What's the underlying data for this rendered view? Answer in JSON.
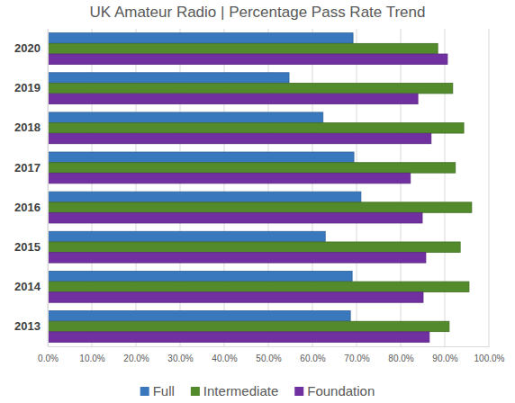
{
  "chart_data": {
    "type": "bar",
    "title": "UK Amateur Radio | Percentage Pass Rate Trend",
    "orientation": "horizontal",
    "categories": [
      "2013",
      "2014",
      "2015",
      "2016",
      "2017",
      "2018",
      "2019",
      "2020"
    ],
    "series": [
      {
        "name": "Full",
        "color": "#3a78bd",
        "values": [
          68.6,
          69.0,
          62.9,
          71.0,
          69.4,
          62.4,
          54.7,
          69.2
        ]
      },
      {
        "name": "Intermediate",
        "color": "#528a2c",
        "values": [
          91.0,
          95.5,
          93.5,
          96.1,
          92.4,
          94.3,
          91.8,
          88.4
        ]
      },
      {
        "name": "Foundation",
        "color": "#7030a0",
        "values": [
          86.5,
          85.1,
          85.7,
          84.9,
          82.2,
          86.9,
          83.9,
          90.6
        ]
      }
    ],
    "xlim": [
      0,
      100
    ],
    "xticks": [
      {
        "value": 0,
        "label": "0.0%"
      },
      {
        "value": 10,
        "label": "10.0%"
      },
      {
        "value": 20,
        "label": "20.0%"
      },
      {
        "value": 30,
        "label": "30.0%"
      },
      {
        "value": 40,
        "label": "40.0%"
      },
      {
        "value": 50,
        "label": "50.0%"
      },
      {
        "value": 60,
        "label": "60.0%"
      },
      {
        "value": 70,
        "label": "70.0%"
      },
      {
        "value": 80,
        "label": "80.0%"
      },
      {
        "value": 90,
        "label": "90.0%"
      },
      {
        "value": 100,
        "label": "100.0%"
      }
    ],
    "grid": true,
    "legend": "bottom"
  }
}
